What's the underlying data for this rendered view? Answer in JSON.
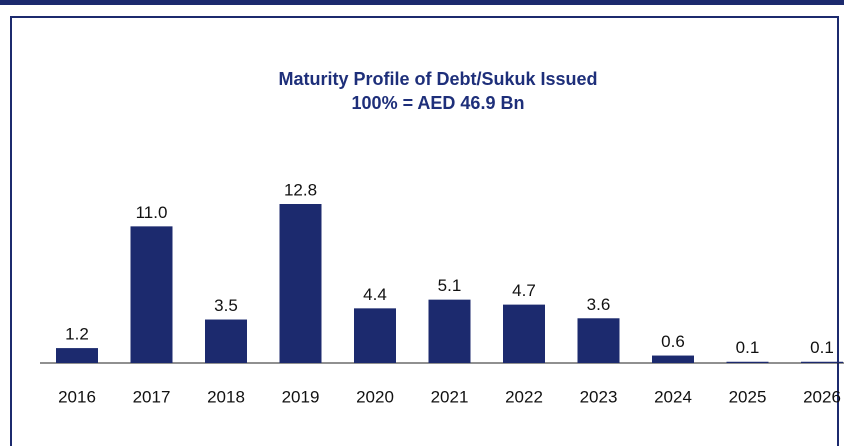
{
  "chart_data": {
    "type": "bar",
    "title": "Maturity Profile of Debt/Sukuk Issued",
    "subtitle": "100% = AED 46.9 Bn",
    "categories": [
      "2016",
      "2017",
      "2018",
      "2019",
      "2020",
      "2021",
      "2022",
      "2023",
      "2024",
      "2025",
      "2026"
    ],
    "values": [
      1.2,
      11.0,
      3.5,
      12.8,
      4.4,
      5.1,
      4.7,
      3.6,
      0.6,
      0.1,
      0.1
    ],
    "value_labels": [
      "1.2",
      "11.0",
      "3.5",
      "12.8",
      "4.4",
      "5.1",
      "4.7",
      "3.6",
      "0.6",
      "0.1",
      "0.1"
    ],
    "color": "#1c2a6e"
  }
}
